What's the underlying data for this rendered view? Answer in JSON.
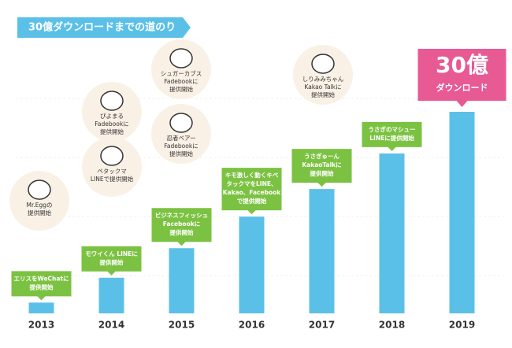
{
  "chart_data": {
    "type": "bar",
    "title": "30億ダウンロードまでの道のり",
    "categories": [
      "2013",
      "2014",
      "2015",
      "2016",
      "2017",
      "2018",
      "2019"
    ],
    "values": [
      1.6,
      5.3,
      9.7,
      14.4,
      18.5,
      23.8,
      30
    ],
    "color": "#5bc0e8",
    "ylim": [
      0,
      30
    ],
    "milestones": [
      {
        "label": [
          "エリスをWeChatに",
          "提供開始"
        ],
        "circles": [
          [
            "Mr.Eggの",
            "提供開始"
          ]
        ]
      },
      {
        "label": [
          "モワイくん LINEに",
          "提供開始"
        ],
        "circles": [
          [
            "ペタックマ",
            "LINEで提供開始"
          ],
          [
            "ぴよまる",
            "Fadebookに",
            "提供開始"
          ]
        ]
      },
      {
        "label": [
          "ビジネスフィッシュ",
          "Facebookに",
          "提供開始"
        ],
        "circles": [
          [
            "忍者ベアー",
            "Fadebookに",
            "提供開始"
          ],
          [
            "シュガーカブス",
            "Fadebookに",
            "提供開始"
          ]
        ]
      },
      {
        "label": [
          "キモ激しく動くキベ",
          "タックマをLINE、",
          "Kakao、Facebook",
          "で提供開始"
        ],
        "circles": []
      },
      {
        "label": [
          "うさぎゅーん",
          "KakaoTalkに",
          "提供開始"
        ],
        "circles": [
          [
            "しりみみちゃん",
            "Kakao Talkに",
            "提供開始"
          ]
        ]
      },
      {
        "label": [
          "うさぎのマシュー",
          "LINEに提供開始"
        ],
        "circles": []
      },
      {
        "highlight": [
          "30億",
          "ダウンロード"
        ],
        "circles": []
      }
    ]
  }
}
